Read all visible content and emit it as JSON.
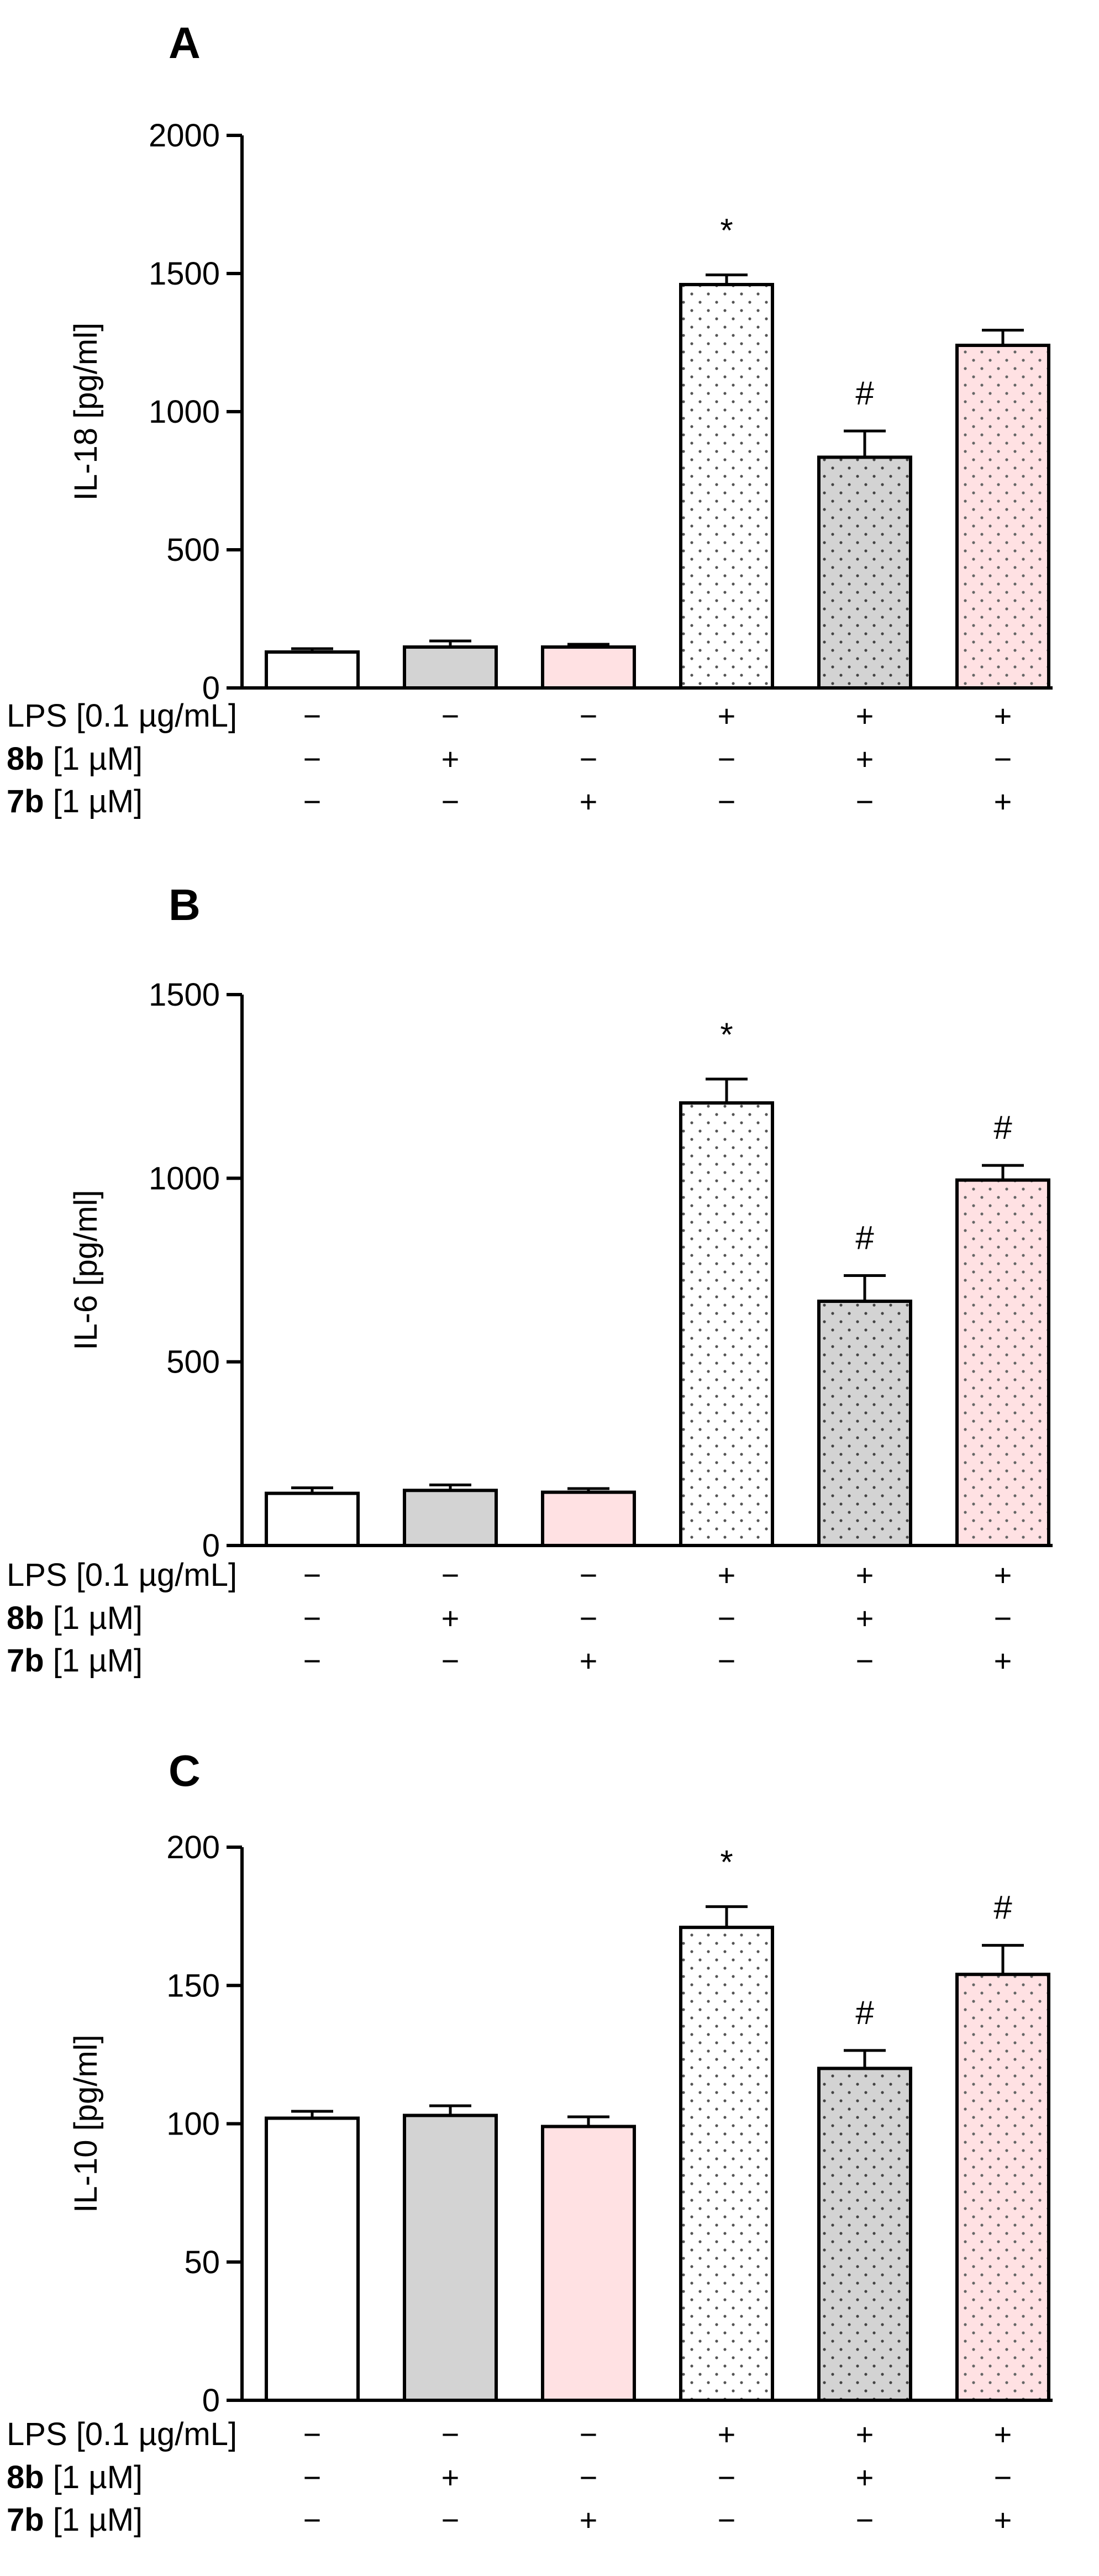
{
  "chart_data": [
    {
      "panel": "A",
      "type": "bar",
      "ylabel": "IL-18 [pg/ml]",
      "ylim": [
        0,
        2000
      ],
      "yticks": [
        0,
        500,
        1000,
        1500,
        2000
      ],
      "ytick_labels": [
        "0",
        "500",
        "1000",
        "1500",
        "2000"
      ],
      "values": [
        130,
        148,
        148,
        1460,
        835,
        1240
      ],
      "errors": [
        12,
        22,
        10,
        35,
        95,
        55
      ],
      "annotations": [
        "",
        "",
        "",
        "*",
        "#",
        ""
      ]
    },
    {
      "panel": "B",
      "type": "bar",
      "ylabel": "IL-6 [pg/ml]",
      "ylim": [
        0,
        1500
      ],
      "yticks": [
        0,
        500,
        1000,
        1500
      ],
      "ytick_labels": [
        "0",
        "500",
        "1000",
        "1500"
      ],
      "values": [
        142,
        150,
        145,
        1205,
        665,
        995
      ],
      "errors": [
        15,
        15,
        10,
        65,
        70,
        40
      ],
      "annotations": [
        "",
        "",
        "",
        "*",
        "#",
        "#"
      ]
    },
    {
      "panel": "C",
      "type": "bar",
      "ylabel": "IL-10 [pg/ml]",
      "ylim": [
        0,
        200
      ],
      "yticks": [
        0,
        50,
        100,
        150,
        200
      ],
      "ytick_labels": [
        "0",
        "50",
        "100",
        "150",
        "200"
      ],
      "values": [
        102,
        103,
        99,
        171,
        120,
        154
      ],
      "errors": [
        2.5,
        3.5,
        3.5,
        7.5,
        6.5,
        10.5
      ],
      "annotations": [
        "",
        "",
        "",
        "*",
        "#",
        "#"
      ]
    }
  ],
  "groups": [
    {
      "name": "control",
      "fill": "#ffffff",
      "dotted": false,
      "dot_color": ""
    },
    {
      "name": "8b",
      "fill": "#d3d3d3",
      "dotted": false,
      "dot_color": ""
    },
    {
      "name": "7b",
      "fill": "#ffe1e3",
      "dotted": false,
      "dot_color": ""
    },
    {
      "name": "LPS",
      "fill": "#ffffff",
      "dotted": true,
      "dot_color": "#555555"
    },
    {
      "name": "LPS + 8b",
      "fill": "#d3d3d3",
      "dotted": true,
      "dot_color": "#444444"
    },
    {
      "name": "LPS + 7b",
      "fill": "#ffe1e3",
      "dotted": true,
      "dot_color": "#666666"
    }
  ],
  "conditions": [
    {
      "label_bold": "",
      "label_rest": "LPS [0.1 µg/mL]",
      "signs": [
        "−",
        "−",
        "−",
        "+",
        "+",
        "+"
      ]
    },
    {
      "label_bold": "8b",
      "label_rest": " [1 µM]",
      "signs": [
        "−",
        "+",
        "−",
        "−",
        "+",
        "−"
      ]
    },
    {
      "label_bold": "7b",
      "label_rest": " [1 µM]",
      "signs": [
        "−",
        "−",
        "+",
        "−",
        "−",
        "+"
      ]
    }
  ]
}
